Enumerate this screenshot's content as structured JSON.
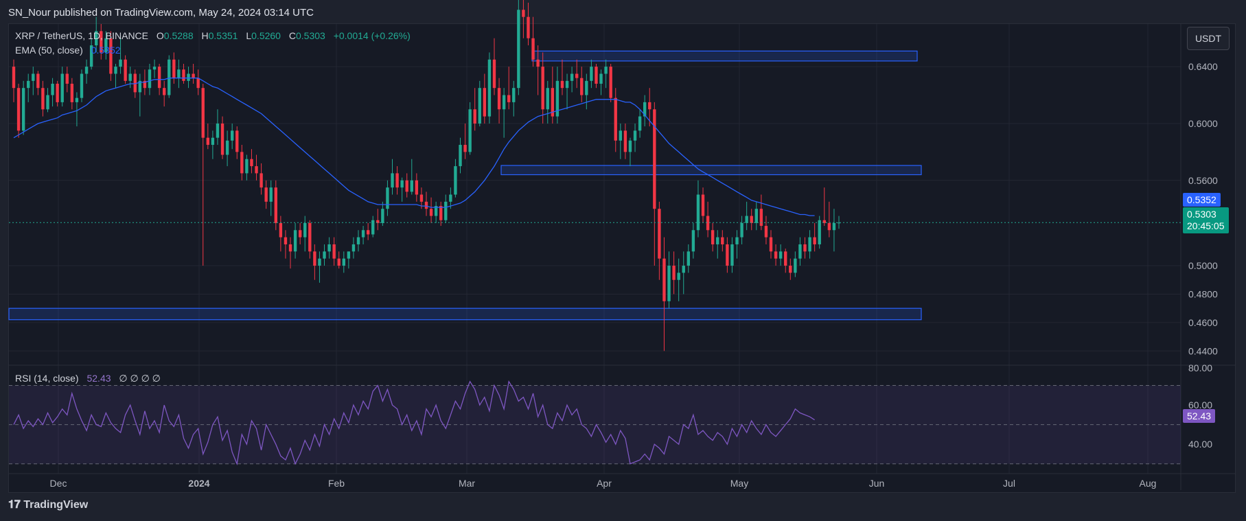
{
  "header": {
    "published_text": "SN_Nour published on TradingView.com, May 24, 2024 03:14 UTC"
  },
  "legend": {
    "symbol": "XRP / TetherUS, 1D, BINANCE",
    "open_label": "O",
    "open": "0.5288",
    "high_label": "H",
    "high": "0.5351",
    "low_label": "L",
    "low": "0.5260",
    "close_label": "C",
    "close": "0.5303",
    "change": "+0.0014 (+0.26%)",
    "ema_label": "EMA (50, close)",
    "ema_value": "0.5352",
    "rsi_label": "RSI (14, close)",
    "rsi_value": "52.43",
    "rsi_extra": "∅ ∅ ∅ ∅"
  },
  "currency_button": "USDT",
  "price_tags": {
    "ema": "0.5352",
    "last": "0.5303",
    "countdown": "20:45:05",
    "rsi": "52.43"
  },
  "colors": {
    "up": "#22ab94",
    "down": "#f23645",
    "ema": "#2962ff",
    "rsi": "#7e57c2",
    "zone": "#2962ff",
    "background": "#161a25"
  },
  "brand": "TradingView",
  "chart_data": {
    "type": "candlestick",
    "symbol": "XRP / TetherUS",
    "interval": "1D",
    "exchange": "BINANCE",
    "price_axis": {
      "ticks": [
        "0.6400",
        "0.6000",
        "0.5600",
        "0.5000",
        "0.4800",
        "0.4600",
        "0.4400"
      ],
      "ylim": [
        0.43,
        0.67
      ]
    },
    "time_axis": {
      "ticks": [
        "Dec",
        "2024",
        "Feb",
        "Mar",
        "Apr",
        "May",
        "Jun",
        "Jul",
        "Aug"
      ]
    },
    "rsi_axis": {
      "ticks": [
        "80.00",
        "60.00",
        "40.00"
      ],
      "ylim": [
        25,
        80
      ]
    },
    "zones": [
      {
        "from": 0.644,
        "to": 0.651
      },
      {
        "from": 0.564,
        "to": 0.5705
      },
      {
        "from": 0.462,
        "to": 0.47
      }
    ],
    "candles": [
      [
        0.64,
        0.645,
        0.615,
        0.625
      ],
      [
        0.625,
        0.628,
        0.59,
        0.595
      ],
      [
        0.595,
        0.63,
        0.592,
        0.625
      ],
      [
        0.625,
        0.635,
        0.615,
        0.63
      ],
      [
        0.63,
        0.64,
        0.62,
        0.635
      ],
      [
        0.635,
        0.637,
        0.62,
        0.625
      ],
      [
        0.625,
        0.63,
        0.605,
        0.61
      ],
      [
        0.61,
        0.625,
        0.608,
        0.62
      ],
      [
        0.62,
        0.632,
        0.612,
        0.628
      ],
      [
        0.628,
        0.63,
        0.612,
        0.615
      ],
      [
        0.615,
        0.64,
        0.612,
        0.635
      ],
      [
        0.635,
        0.64,
        0.622,
        0.628
      ],
      [
        0.628,
        0.632,
        0.61,
        0.615
      ],
      [
        0.615,
        0.622,
        0.598,
        0.618
      ],
      [
        0.618,
        0.638,
        0.615,
        0.635
      ],
      [
        0.635,
        0.645,
        0.628,
        0.64
      ],
      [
        0.64,
        0.66,
        0.638,
        0.655
      ],
      [
        0.655,
        0.675,
        0.65,
        0.665
      ],
      [
        0.665,
        0.67,
        0.645,
        0.65
      ],
      [
        0.65,
        0.665,
        0.645,
        0.66
      ],
      [
        0.66,
        0.665,
        0.63,
        0.635
      ],
      [
        0.635,
        0.642,
        0.625,
        0.64
      ],
      [
        0.64,
        0.662,
        0.635,
        0.645
      ],
      [
        0.645,
        0.648,
        0.628,
        0.63
      ],
      [
        0.63,
        0.64,
        0.625,
        0.635
      ],
      [
        0.635,
        0.638,
        0.618,
        0.622
      ],
      [
        0.622,
        0.635,
        0.605,
        0.63
      ],
      [
        0.63,
        0.638,
        0.62,
        0.625
      ],
      [
        0.625,
        0.642,
        0.62,
        0.638
      ],
      [
        0.638,
        0.645,
        0.632,
        0.64
      ],
      [
        0.64,
        0.642,
        0.62,
        0.625
      ],
      [
        0.625,
        0.63,
        0.612,
        0.62
      ],
      [
        0.62,
        0.648,
        0.618,
        0.645
      ],
      [
        0.645,
        0.65,
        0.628,
        0.632
      ],
      [
        0.632,
        0.645,
        0.625,
        0.638
      ],
      [
        0.638,
        0.642,
        0.628,
        0.63
      ],
      [
        0.63,
        0.64,
        0.625,
        0.635
      ],
      [
        0.635,
        0.642,
        0.628,
        0.632
      ],
      [
        0.632,
        0.638,
        0.62,
        0.625
      ],
      [
        0.625,
        0.628,
        0.5,
        0.59
      ],
      [
        0.59,
        0.6,
        0.582,
        0.585
      ],
      [
        0.585,
        0.595,
        0.575,
        0.59
      ],
      [
        0.59,
        0.61,
        0.585,
        0.6
      ],
      [
        0.6,
        0.605,
        0.575,
        0.578
      ],
      [
        0.578,
        0.595,
        0.57,
        0.588
      ],
      [
        0.588,
        0.6,
        0.582,
        0.595
      ],
      [
        0.595,
        0.598,
        0.575,
        0.58
      ],
      [
        0.58,
        0.585,
        0.56,
        0.565
      ],
      [
        0.565,
        0.578,
        0.56,
        0.575
      ],
      [
        0.575,
        0.582,
        0.565,
        0.57
      ],
      [
        0.57,
        0.578,
        0.56,
        0.565
      ],
      [
        0.565,
        0.572,
        0.55,
        0.555
      ],
      [
        0.555,
        0.56,
        0.54,
        0.545
      ],
      [
        0.545,
        0.56,
        0.535,
        0.555
      ],
      [
        0.555,
        0.56,
        0.525,
        0.53
      ],
      [
        0.53,
        0.535,
        0.51,
        0.52
      ],
      [
        0.52,
        0.525,
        0.505,
        0.515
      ],
      [
        0.515,
        0.52,
        0.498,
        0.51
      ],
      [
        0.51,
        0.53,
        0.505,
        0.525
      ],
      [
        0.525,
        0.53,
        0.515,
        0.52
      ],
      [
        0.52,
        0.535,
        0.51,
        0.53
      ],
      [
        0.53,
        0.532,
        0.505,
        0.51
      ],
      [
        0.51,
        0.515,
        0.49,
        0.5
      ],
      [
        0.5,
        0.51,
        0.488,
        0.505
      ],
      [
        0.505,
        0.515,
        0.5,
        0.51
      ],
      [
        0.51,
        0.52,
        0.505,
        0.515
      ],
      [
        0.515,
        0.52,
        0.5,
        0.505
      ],
      [
        0.505,
        0.51,
        0.498,
        0.5
      ],
      [
        0.5,
        0.51,
        0.495,
        0.505
      ],
      [
        0.505,
        0.51,
        0.498,
        0.51
      ],
      [
        0.51,
        0.52,
        0.505,
        0.515
      ],
      [
        0.515,
        0.525,
        0.51,
        0.52
      ],
      [
        0.52,
        0.528,
        0.515,
        0.525
      ],
      [
        0.525,
        0.53,
        0.518,
        0.522
      ],
      [
        0.522,
        0.535,
        0.52,
        0.532
      ],
      [
        0.532,
        0.54,
        0.525,
        0.53
      ],
      [
        0.53,
        0.545,
        0.528,
        0.54
      ],
      [
        0.54,
        0.56,
        0.535,
        0.555
      ],
      [
        0.555,
        0.575,
        0.55,
        0.565
      ],
      [
        0.565,
        0.57,
        0.55,
        0.555
      ],
      [
        0.555,
        0.562,
        0.545,
        0.56
      ],
      [
        0.56,
        0.565,
        0.548,
        0.552
      ],
      [
        0.552,
        0.575,
        0.55,
        0.56
      ],
      [
        0.56,
        0.565,
        0.545,
        0.55
      ],
      [
        0.55,
        0.555,
        0.54,
        0.545
      ],
      [
        0.545,
        0.552,
        0.535,
        0.54
      ],
      [
        0.54,
        0.548,
        0.53,
        0.535
      ],
      [
        0.535,
        0.545,
        0.53,
        0.542
      ],
      [
        0.542,
        0.545,
        0.528,
        0.532
      ],
      [
        0.532,
        0.55,
        0.53,
        0.545
      ],
      [
        0.545,
        0.555,
        0.54,
        0.55
      ],
      [
        0.55,
        0.575,
        0.548,
        0.57
      ],
      [
        0.57,
        0.59,
        0.565,
        0.585
      ],
      [
        0.585,
        0.6,
        0.575,
        0.58
      ],
      [
        0.58,
        0.615,
        0.578,
        0.61
      ],
      [
        0.61,
        0.625,
        0.595,
        0.6
      ],
      [
        0.6,
        0.63,
        0.598,
        0.625
      ],
      [
        0.625,
        0.635,
        0.6,
        0.605
      ],
      [
        0.605,
        0.65,
        0.6,
        0.645
      ],
      [
        0.645,
        0.66,
        0.62,
        0.625
      ],
      [
        0.625,
        0.632,
        0.6,
        0.61
      ],
      [
        0.61,
        0.625,
        0.59,
        0.62
      ],
      [
        0.62,
        0.64,
        0.61,
        0.615
      ],
      [
        0.615,
        0.63,
        0.605,
        0.625
      ],
      [
        0.625,
        0.7,
        0.62,
        0.68
      ],
      [
        0.68,
        0.69,
        0.66,
        0.675
      ],
      [
        0.675,
        0.685,
        0.655,
        0.66
      ],
      [
        0.66,
        0.675,
        0.64,
        0.645
      ],
      [
        0.645,
        0.655,
        0.62,
        0.64
      ],
      [
        0.64,
        0.65,
        0.6,
        0.61
      ],
      [
        0.61,
        0.63,
        0.6,
        0.625
      ],
      [
        0.625,
        0.64,
        0.6,
        0.605
      ],
      [
        0.605,
        0.64,
        0.6,
        0.63
      ],
      [
        0.63,
        0.645,
        0.62,
        0.625
      ],
      [
        0.625,
        0.635,
        0.61,
        0.63
      ],
      [
        0.63,
        0.64,
        0.622,
        0.635
      ],
      [
        0.635,
        0.645,
        0.625,
        0.632
      ],
      [
        0.632,
        0.64,
        0.615,
        0.62
      ],
      [
        0.62,
        0.635,
        0.61,
        0.63
      ],
      [
        0.63,
        0.645,
        0.625,
        0.64
      ],
      [
        0.64,
        0.642,
        0.625,
        0.628
      ],
      [
        0.628,
        0.638,
        0.62,
        0.635
      ],
      [
        0.635,
        0.645,
        0.625,
        0.64
      ],
      [
        0.64,
        0.642,
        0.615,
        0.618
      ],
      [
        0.618,
        0.625,
        0.58,
        0.588
      ],
      [
        0.588,
        0.6,
        0.575,
        0.595
      ],
      [
        0.595,
        0.6,
        0.575,
        0.58
      ],
      [
        0.58,
        0.59,
        0.57,
        0.588
      ],
      [
        0.588,
        0.6,
        0.58,
        0.595
      ],
      [
        0.595,
        0.61,
        0.59,
        0.605
      ],
      [
        0.605,
        0.62,
        0.598,
        0.615
      ],
      [
        0.615,
        0.625,
        0.598,
        0.61
      ],
      [
        0.61,
        0.615,
        0.5,
        0.54
      ],
      [
        0.54,
        0.545,
        0.49,
        0.505
      ],
      [
        0.505,
        0.52,
        0.44,
        0.475
      ],
      [
        0.475,
        0.51,
        0.47,
        0.5
      ],
      [
        0.5,
        0.51,
        0.48,
        0.49
      ],
      [
        0.49,
        0.505,
        0.475,
        0.495
      ],
      [
        0.495,
        0.51,
        0.48,
        0.5
      ],
      [
        0.5,
        0.515,
        0.495,
        0.51
      ],
      [
        0.51,
        0.53,
        0.505,
        0.525
      ],
      [
        0.525,
        0.56,
        0.52,
        0.55
      ],
      [
        0.55,
        0.555,
        0.53,
        0.535
      ],
      [
        0.535,
        0.545,
        0.52,
        0.525
      ],
      [
        0.525,
        0.53,
        0.51,
        0.515
      ],
      [
        0.515,
        0.525,
        0.505,
        0.52
      ],
      [
        0.52,
        0.525,
        0.51,
        0.515
      ],
      [
        0.515,
        0.52,
        0.495,
        0.5
      ],
      [
        0.5,
        0.52,
        0.495,
        0.515
      ],
      [
        0.515,
        0.525,
        0.505,
        0.52
      ],
      [
        0.52,
        0.535,
        0.515,
        0.53
      ],
      [
        0.53,
        0.545,
        0.525,
        0.535
      ],
      [
        0.535,
        0.54,
        0.525,
        0.53
      ],
      [
        0.53,
        0.545,
        0.525,
        0.54
      ],
      [
        0.54,
        0.55,
        0.525,
        0.528
      ],
      [
        0.528,
        0.535,
        0.515,
        0.52
      ],
      [
        0.52,
        0.525,
        0.505,
        0.51
      ],
      [
        0.51,
        0.515,
        0.5,
        0.505
      ],
      [
        0.505,
        0.515,
        0.5,
        0.51
      ],
      [
        0.51,
        0.512,
        0.495,
        0.5
      ],
      [
        0.5,
        0.505,
        0.49,
        0.495
      ],
      [
        0.495,
        0.51,
        0.492,
        0.505
      ],
      [
        0.505,
        0.52,
        0.5,
        0.515
      ],
      [
        0.515,
        0.52,
        0.505,
        0.51
      ],
      [
        0.51,
        0.525,
        0.505,
        0.52
      ],
      [
        0.52,
        0.53,
        0.51,
        0.515
      ],
      [
        0.515,
        0.535,
        0.512,
        0.532
      ],
      [
        0.532,
        0.555,
        0.528,
        0.53
      ],
      [
        0.53,
        0.545,
        0.52,
        0.525
      ],
      [
        0.525,
        0.54,
        0.51,
        0.53
      ],
      [
        0.53,
        0.535,
        0.526,
        0.5303
      ]
    ],
    "ema50": [
      0.59,
      0.592,
      0.594,
      0.596,
      0.598,
      0.6,
      0.601,
      0.602,
      0.603,
      0.604,
      0.606,
      0.607,
      0.608,
      0.609,
      0.611,
      0.613,
      0.616,
      0.619,
      0.621,
      0.623,
      0.624,
      0.625,
      0.626,
      0.627,
      0.628,
      0.628,
      0.629,
      0.629,
      0.63,
      0.631,
      0.631,
      0.631,
      0.632,
      0.632,
      0.632,
      0.632,
      0.632,
      0.632,
      0.632,
      0.63,
      0.628,
      0.626,
      0.625,
      0.623,
      0.621,
      0.619,
      0.617,
      0.615,
      0.613,
      0.611,
      0.609,
      0.607,
      0.604,
      0.601,
      0.598,
      0.595,
      0.592,
      0.589,
      0.586,
      0.583,
      0.58,
      0.577,
      0.574,
      0.571,
      0.568,
      0.565,
      0.562,
      0.559,
      0.556,
      0.553,
      0.551,
      0.549,
      0.547,
      0.545,
      0.544,
      0.543,
      0.543,
      0.543,
      0.543,
      0.543,
      0.543,
      0.543,
      0.543,
      0.543,
      0.542,
      0.542,
      0.541,
      0.541,
      0.541,
      0.541,
      0.542,
      0.543,
      0.544,
      0.546,
      0.549,
      0.552,
      0.556,
      0.56,
      0.565,
      0.57,
      0.576,
      0.582,
      0.587,
      0.591,
      0.595,
      0.598,
      0.601,
      0.603,
      0.605,
      0.606,
      0.607,
      0.608,
      0.609,
      0.61,
      0.611,
      0.612,
      0.613,
      0.614,
      0.615,
      0.616,
      0.617,
      0.617,
      0.617,
      0.617,
      0.617,
      0.616,
      0.615,
      0.615,
      0.613,
      0.61,
      0.606,
      0.602,
      0.598,
      0.594,
      0.59,
      0.586,
      0.583,
      0.58,
      0.577,
      0.574,
      0.571,
      0.568,
      0.566,
      0.564,
      0.562,
      0.56,
      0.558,
      0.556,
      0.554,
      0.552,
      0.55,
      0.548,
      0.546,
      0.545,
      0.544,
      0.543,
      0.542,
      0.541,
      0.54,
      0.539,
      0.538,
      0.537,
      0.536,
      0.536,
      0.5352,
      0.5352
    ],
    "rsi14": [
      50,
      55,
      48,
      52,
      49,
      53,
      50,
      56,
      51,
      54,
      58,
      55,
      66,
      58,
      52,
      47,
      55,
      50,
      49,
      56,
      51,
      48,
      46,
      55,
      60,
      52,
      45,
      57,
      48,
      52,
      46,
      60,
      52,
      49,
      55,
      43,
      38,
      45,
      48,
      35,
      41,
      50,
      54,
      42,
      47,
      36,
      30,
      45,
      40,
      52,
      48,
      37,
      50,
      45,
      40,
      34,
      32,
      38,
      30,
      35,
      42,
      37,
      45,
      39,
      50,
      45,
      53,
      48,
      56,
      51,
      60,
      55,
      62,
      58,
      67,
      70,
      62,
      68,
      60,
      58,
      50,
      55,
      47,
      52,
      45,
      58,
      54,
      60,
      52,
      48,
      55,
      62,
      58,
      66,
      72,
      68,
      60,
      64,
      57,
      70,
      65,
      58,
      72,
      68,
      62,
      64,
      58,
      66,
      54,
      60,
      50,
      48,
      56,
      52,
      60,
      55,
      58,
      50,
      48,
      44,
      50,
      46,
      41,
      45,
      40,
      47,
      43,
      30,
      31,
      32,
      35,
      32,
      40,
      38,
      35,
      44,
      42,
      40,
      50,
      48,
      55,
      45,
      47,
      44,
      42,
      46,
      44,
      40,
      48,
      44,
      50,
      46,
      52,
      48,
      45,
      50,
      46,
      44,
      47,
      50,
      53,
      58,
      56,
      55,
      54,
      52.43
    ]
  }
}
